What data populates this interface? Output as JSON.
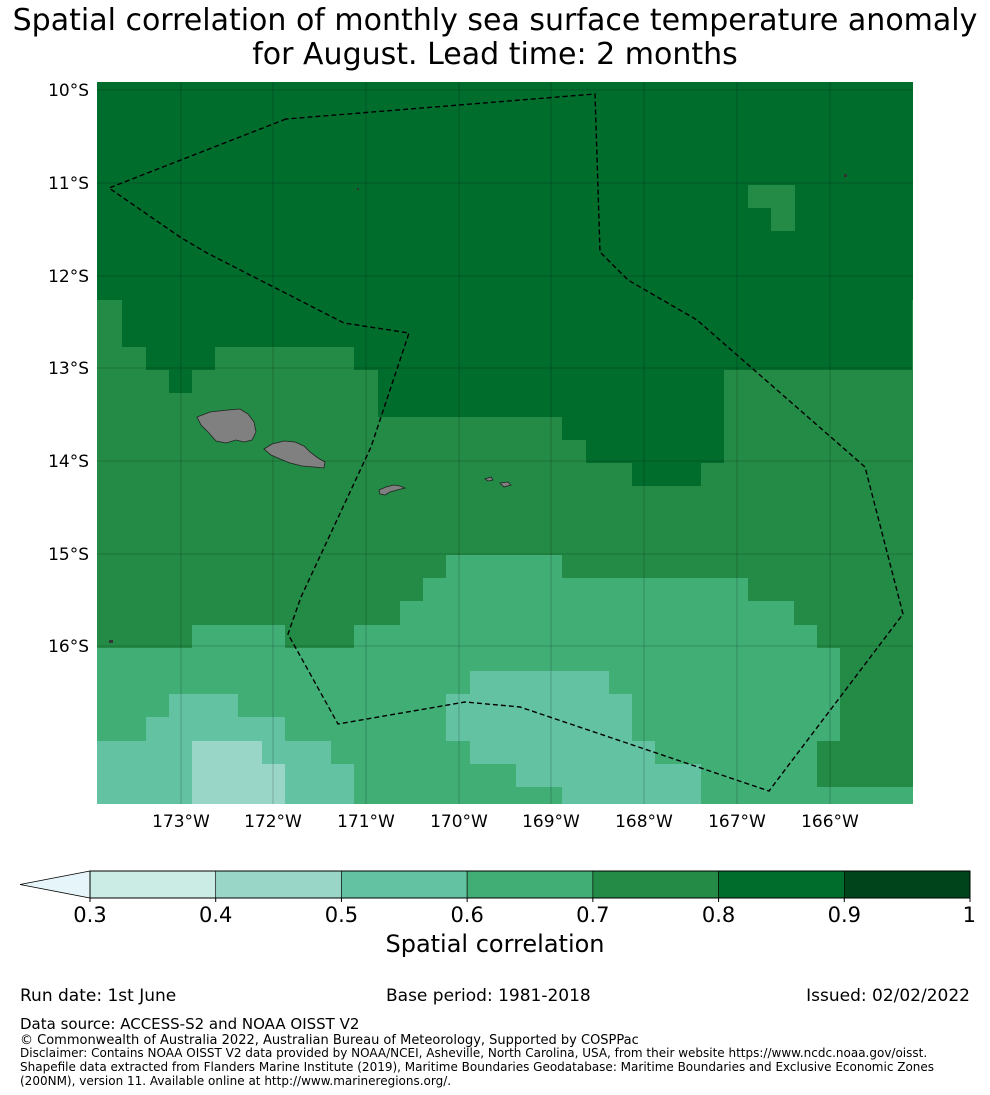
{
  "title_line1": "Spatial correlation of monthly sea surface temperature anomaly",
  "title_line2": "for August. Lead time: 2 months",
  "colors": {
    "c1": "#cbece4",
    "c2": "#99d6c8",
    "c3": "#62c2a2",
    "c4": "#41ae76",
    "c5": "#238b45",
    "c6": "#006d2c",
    "c7": "#00441b",
    "land": "#808080",
    "eez_line": "#000000"
  },
  "chart_data": {
    "type": "heatmap",
    "lat_labels": [
      "10°S",
      "11°S",
      "12°S",
      "13°S",
      "14°S",
      "15°S",
      "16°S"
    ],
    "lon_labels": [
      "173°W",
      "172°W",
      "171°W",
      "170°W",
      "169°W",
      "168°W",
      "167°W",
      "166°W"
    ],
    "lon_range": [
      -173.9,
      -165.1
    ],
    "lat_range": [
      -17.7,
      -9.9
    ],
    "colorbar": {
      "label": "Spatial correlation",
      "ticks": [
        "0.3",
        "0.4",
        "0.5",
        "0.6",
        "0.7",
        "0.8",
        "0.9",
        "1"
      ],
      "extend": "min"
    },
    "regions_description": "North: 0.8-0.9; Centre: 0.7-0.8; South: 0.6-0.7 with 0.4-0.6 patches in the far south"
  },
  "footer": {
    "run_date": "Run date: 1st June",
    "base_period": "Base period: 1981-2018",
    "issued": "Issued: 02/02/2022",
    "data_source": "Data source: ACCESS-S2 and NOAA OISST V2",
    "copyright": "© Commonwealth of Australia 2022, Australian Bureau of Meteorology, Supported by COSPPac",
    "disclaimer": "Disclaimer: Contains NOAA OISST V2 data provided by NOAA/NCEI, Asheville, North Carolina, USA, from their website https://www.ncdc.noaa.gov/oisst. Shapefile data extracted from Flanders Marine Institute (2019), Maritime Boundaries Geodatabase: Maritime Boundaries and Exclusive Economic Zones (200NM), version 11. Available online at http://www.marineregions.org/."
  }
}
